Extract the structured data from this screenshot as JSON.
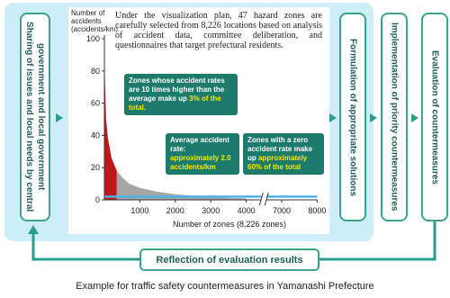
{
  "left_box": "Sharing of issues and local needs by central government and local government",
  "chart_data": {
    "type": "area",
    "description": "Under the visualization plan, 47 hazard zones are carefully selected from 8,226 locations based on analysis of accident data, committee deliberation, and questionnaires that target prefectural residents.",
    "y_label": "Number of accidents (accidents/km)",
    "x_label": "Number of zones (8,226 zones)",
    "xlim": [
      0,
      8000
    ],
    "xticks": [
      1000,
      2000,
      3000,
      4000,
      7000,
      8000
    ],
    "ylim": [
      0,
      100
    ],
    "yticks": [
      0,
      20,
      40,
      60,
      80,
      100
    ],
    "series": [
      {
        "color": "#c0171b",
        "x": [
          0,
          20,
          47,
          100,
          200,
          350
        ],
        "values": [
          95,
          70,
          50,
          38,
          26,
          18
        ]
      },
      {
        "color": "#a6a6a6",
        "x": [
          350,
          500,
          700,
          1000,
          1500,
          2000,
          2500,
          3000,
          3500,
          4000
        ],
        "values": [
          18,
          14,
          10,
          7.5,
          5,
          3.5,
          2.5,
          1.8,
          1.2,
          1
        ]
      }
    ],
    "reference_line": {
      "value": 2,
      "color": "#4ab4e6"
    },
    "annotations": [
      {
        "text": "Zones whose accident rates are 10 times higher than the average make up",
        "highlight": "3% of the total."
      },
      {
        "text": "Average accident rate:",
        "highlight": "approximately 2.0 accidents/km"
      },
      {
        "text": "Zones with a zero accident rate make up",
        "highlight": "approximately 60% of the total"
      }
    ]
  },
  "steps": [
    "Formulation of appropriate solutions",
    "Implementation of priority countermeasures",
    "Evaluation of countermeasures"
  ],
  "feedback": "Reflection of evaluation results",
  "caption": "Example for traffic safety countermeasures in Yamanashi Prefecture"
}
